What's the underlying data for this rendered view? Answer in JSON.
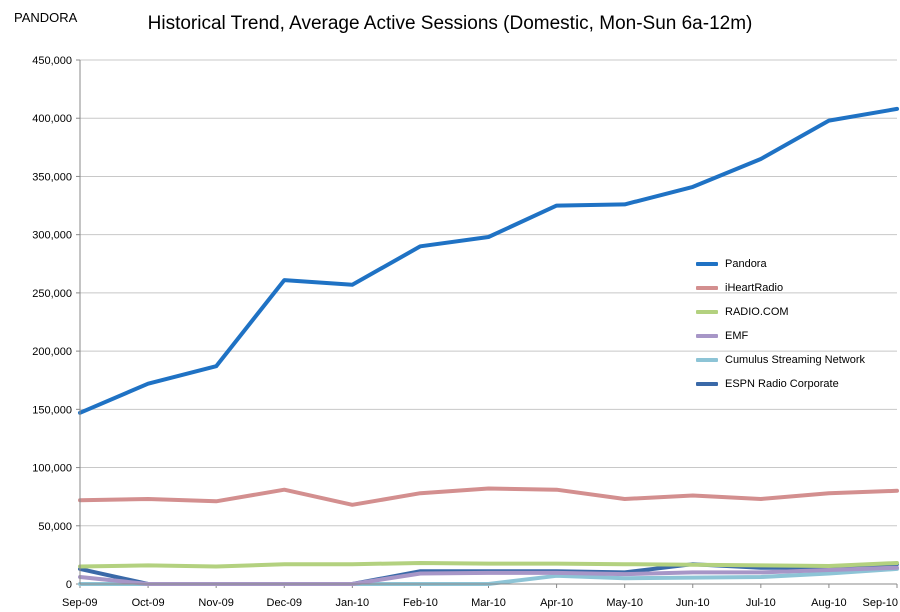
{
  "header": {
    "brand": "PANDORA",
    "title": "Historical Trend, Average Active Sessions (Domestic, Mon-Sun  6a-12m)"
  },
  "chart_data": {
    "type": "line",
    "title": "Historical Trend, Average Active Sessions (Domestic, Mon-Sun  6a-12m)",
    "xlabel": "",
    "ylabel": "",
    "ylim": [
      0,
      450000
    ],
    "yticks": [
      0,
      50000,
      100000,
      150000,
      200000,
      250000,
      300000,
      350000,
      400000,
      450000
    ],
    "ytick_labels": [
      "0",
      "50,000",
      "100,000",
      "150,000",
      "200,000",
      "250,000",
      "300,000",
      "350,000",
      "400,000",
      "450,000"
    ],
    "grid": true,
    "legend_position": "right",
    "categories": [
      "Sep-09",
      "Oct-09",
      "Nov-09",
      "Dec-09",
      "Jan-10",
      "Feb-10",
      "Mar-10",
      "Apr-10",
      "May-10",
      "Jun-10",
      "Jul-10",
      "Aug-10",
      "Sep-10"
    ],
    "series": [
      {
        "name": "Pandora",
        "color": "#1f72c4",
        "values": [
          147000,
          172000,
          187000,
          261000,
          257000,
          290000,
          298000,
          325000,
          326000,
          341000,
          365000,
          398000,
          408000
        ]
      },
      {
        "name": "iHeartRadio",
        "color": "#d38f8f",
        "values": [
          72000,
          73000,
          71000,
          81000,
          68000,
          78000,
          82000,
          81000,
          73000,
          76000,
          73000,
          78000,
          80000
        ]
      },
      {
        "name": "RADIO.COM",
        "color": "#b3d17f",
        "values": [
          15000,
          16000,
          15000,
          17000,
          17000,
          18000,
          17500,
          17500,
          17000,
          16500,
          16000,
          15500,
          18000
        ]
      },
      {
        "name": "EMF",
        "color": "#a796c7",
        "values": [
          6000,
          0,
          0,
          0,
          0,
          9000,
          9500,
          9500,
          8500,
          10000,
          10000,
          12000,
          14000
        ]
      },
      {
        "name": "Cumulus Streaming Network",
        "color": "#8dc4d6",
        "values": [
          0,
          0,
          0,
          0,
          0,
          0,
          0,
          7000,
          5000,
          5500,
          6000,
          9000,
          13000
        ]
      },
      {
        "name": "ESPN Radio Corporate",
        "color": "#3a69a8",
        "values": [
          13000,
          0,
          0,
          0,
          0,
          11000,
          11000,
          11000,
          10000,
          17000,
          14000,
          14000,
          17000
        ]
      }
    ]
  }
}
